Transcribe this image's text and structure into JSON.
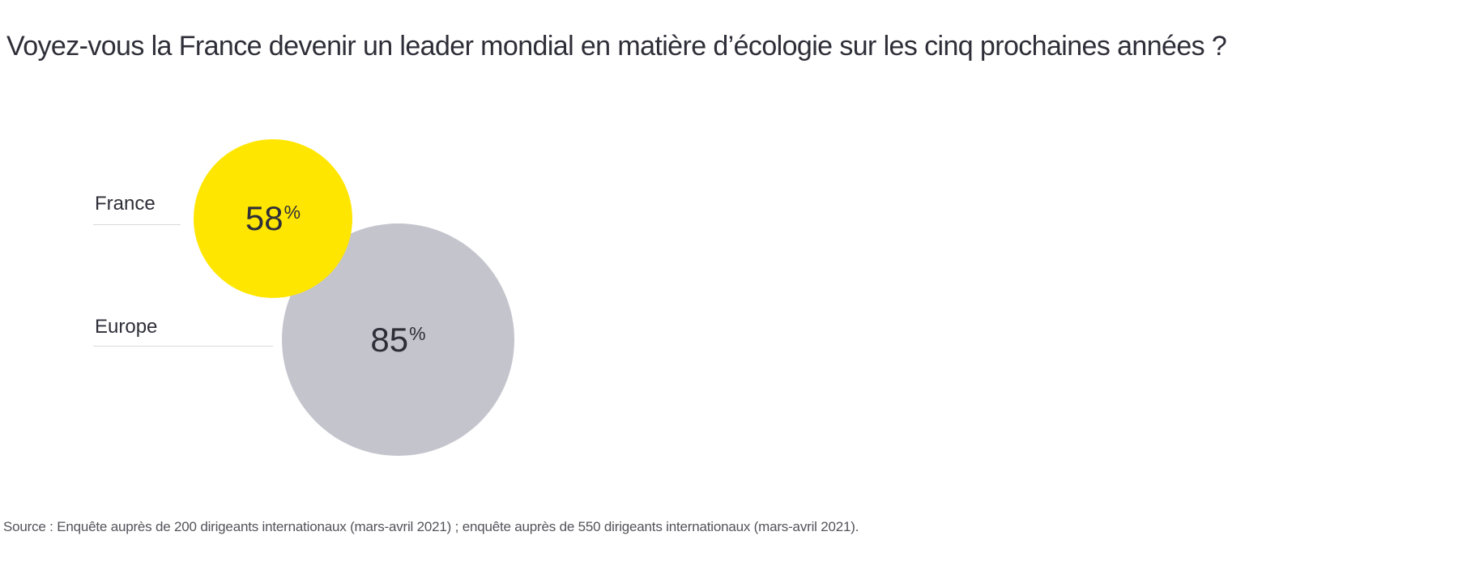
{
  "title": "Voyez-vous la France devenir un leader mondial en matière d’écologie sur les cinq prochaines années ?",
  "source": "Source : Enquête auprès de 200 dirigeants internationaux (mars-avril 2021) ; enquête auprès de 550 dirigeants internationaux (mars-avril 2021).",
  "colors": {
    "brand_yellow": "#FFE600",
    "neutral_gray": "#C4C4CD",
    "text_dark": "#2E2E38",
    "underline_gray": "#D9D9DE"
  },
  "chart_data": {
    "type": "scatter",
    "variant": "proportional-bubble",
    "title": "Voyez-vous la France devenir un leader mondial en matière d’écologie sur les cinq prochaines années ?",
    "categories": [
      "France",
      "Europe"
    ],
    "values": [
      58,
      85
    ],
    "unit": "%",
    "series": [
      {
        "label": "France",
        "value": 58,
        "display": "58",
        "unit": "%",
        "color": "#FFE600"
      },
      {
        "label": "Europe",
        "value": 85,
        "display": "85",
        "unit": "%",
        "color": "#C4C4CD"
      }
    ],
    "legend": "none",
    "axes": "none",
    "grid": false,
    "annotation": "Source : Enquête auprès de 200 dirigeants internationaux (mars-avril 2021) ; enquête auprès de 550 dirigeants internationaux (mars-avril 2021)."
  }
}
